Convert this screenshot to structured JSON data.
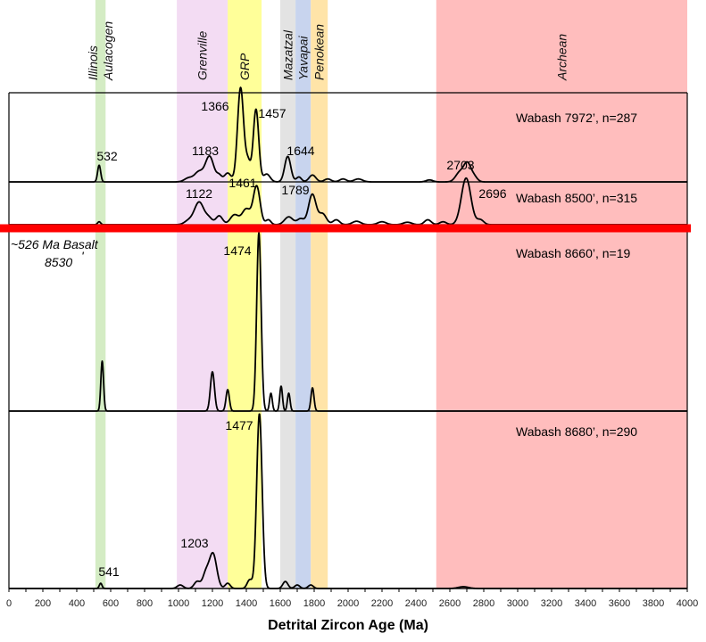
{
  "chart_data": {
    "type": "line",
    "title": "",
    "xlabel": "Detrital Zircon Age (Ma)",
    "ylabel": "",
    "xlim": [
      0,
      4000
    ],
    "x_ticks": [
      0,
      100,
      200,
      300,
      400,
      500,
      600,
      700,
      800,
      900,
      1000,
      1100,
      1200,
      1300,
      1400,
      1500,
      1600,
      1700,
      1800,
      1900,
      2000,
      2100,
      2200,
      2300,
      2400,
      2500,
      2600,
      2700,
      2800,
      2900,
      3000,
      3100,
      3200,
      3300,
      3400,
      3500,
      3600,
      3700,
      3800,
      3900,
      4000
    ],
    "x_tick_labels": [
      "0",
      "200",
      "400",
      "600",
      "800",
      "1000",
      "1200",
      "1400",
      "1600",
      "1800",
      "2000",
      "2200",
      "2400",
      "2600",
      "2800",
      "3000",
      "3200",
      "3400",
      "3600",
      "3800",
      "4000"
    ],
    "x_tick_label_values": [
      0,
      200,
      400,
      600,
      800,
      1000,
      1200,
      1400,
      1600,
      1800,
      2000,
      2200,
      2400,
      2600,
      2800,
      3000,
      3200,
      3400,
      3600,
      3800,
      4000
    ],
    "bands": [
      {
        "name": "illinois-aulacogen",
        "label_lines": [
          "Illinois",
          "Aulacogen"
        ],
        "range": [
          510,
          570
        ],
        "color": "#d4ecc4"
      },
      {
        "name": "grenville",
        "label_lines": [
          "Grenville"
        ],
        "range": [
          990,
          1290
        ],
        "color": "#f3dcf3"
      },
      {
        "name": "grp",
        "label_lines": [
          "GRP"
        ],
        "range": [
          1290,
          1490
        ],
        "color": "#ffff99"
      },
      {
        "name": "mazatzal",
        "label_lines": [
          "Mazatzal"
        ],
        "range": [
          1600,
          1690
        ],
        "color": "#e3e3e3"
      },
      {
        "name": "yavapai",
        "label_lines": [
          "Yavapai"
        ],
        "range": [
          1690,
          1780
        ],
        "color": "#c8d4ee"
      },
      {
        "name": "penokean",
        "label_lines": [
          "Penokean"
        ],
        "range": [
          1780,
          1880
        ],
        "color": "#ffe4a8"
      },
      {
        "name": "archean",
        "label_lines": [
          "Archean"
        ],
        "range": [
          2520,
          4000
        ],
        "color": "#ffbdbd"
      }
    ],
    "basalt_marker": {
      "label": "~526 Ma Basalt",
      "depth_label": "8530",
      "depth_mark": "'",
      "color": "#ff0000"
    },
    "series": [
      {
        "name": "Wabash 7972’, n=287",
        "peak_labels": [
          {
            "text": "532",
            "x": 532
          },
          {
            "text": "1183",
            "x": 1183
          },
          {
            "text": "1366",
            "x": 1366
          },
          {
            "text": "1457",
            "x": 1457
          },
          {
            "text": "1644",
            "x": 1644
          },
          {
            "text": "2703",
            "x": 2703
          }
        ],
        "peaks": [
          {
            "x": 532,
            "height": 0.17,
            "width": 9
          },
          {
            "x": 1060,
            "height": 0.04,
            "width": 25
          },
          {
            "x": 1120,
            "height": 0.1,
            "width": 25
          },
          {
            "x": 1183,
            "height": 0.26,
            "width": 25
          },
          {
            "x": 1240,
            "height": 0.06,
            "width": 15
          },
          {
            "x": 1290,
            "height": 0.09,
            "width": 20
          },
          {
            "x": 1366,
            "height": 0.96,
            "width": 18
          },
          {
            "x": 1410,
            "height": 0.2,
            "width": 15
          },
          {
            "x": 1457,
            "height": 0.74,
            "width": 16
          },
          {
            "x": 1520,
            "height": 0.08,
            "width": 20
          },
          {
            "x": 1644,
            "height": 0.26,
            "width": 18
          },
          {
            "x": 1710,
            "height": 0.05,
            "width": 15
          },
          {
            "x": 1790,
            "height": 0.07,
            "width": 20
          },
          {
            "x": 1880,
            "height": 0.03,
            "width": 20
          },
          {
            "x": 1970,
            "height": 0.03,
            "width": 20
          },
          {
            "x": 2060,
            "height": 0.03,
            "width": 25
          },
          {
            "x": 2480,
            "height": 0.02,
            "width": 20
          },
          {
            "x": 2660,
            "height": 0.1,
            "width": 25
          },
          {
            "x": 2703,
            "height": 0.17,
            "width": 20
          },
          {
            "x": 2740,
            "height": 0.06,
            "width": 20
          }
        ]
      },
      {
        "name": "Wabash 8500’, n=315",
        "peak_labels": [
          {
            "text": "1122",
            "x": 1122
          },
          {
            "text": "1461",
            "x": 1461
          },
          {
            "text": "1789",
            "x": 1789
          },
          {
            "text": "2696",
            "x": 2696
          }
        ],
        "peaks": [
          {
            "x": 532,
            "height": 0.06,
            "width": 9
          },
          {
            "x": 1060,
            "height": 0.08,
            "width": 25
          },
          {
            "x": 1122,
            "height": 0.46,
            "width": 28
          },
          {
            "x": 1180,
            "height": 0.12,
            "width": 20
          },
          {
            "x": 1240,
            "height": 0.18,
            "width": 20
          },
          {
            "x": 1330,
            "height": 0.2,
            "width": 25
          },
          {
            "x": 1400,
            "height": 0.32,
            "width": 25
          },
          {
            "x": 1461,
            "height": 0.78,
            "width": 20
          },
          {
            "x": 1530,
            "height": 0.1,
            "width": 15
          },
          {
            "x": 1650,
            "height": 0.16,
            "width": 25
          },
          {
            "x": 1720,
            "height": 0.12,
            "width": 20
          },
          {
            "x": 1789,
            "height": 0.62,
            "width": 22
          },
          {
            "x": 1850,
            "height": 0.22,
            "width": 22
          },
          {
            "x": 1930,
            "height": 0.1,
            "width": 20
          },
          {
            "x": 2050,
            "height": 0.07,
            "width": 25
          },
          {
            "x": 2200,
            "height": 0.06,
            "width": 25
          },
          {
            "x": 2350,
            "height": 0.05,
            "width": 25
          },
          {
            "x": 2470,
            "height": 0.1,
            "width": 20
          },
          {
            "x": 2560,
            "height": 0.06,
            "width": 20
          },
          {
            "x": 2696,
            "height": 0.95,
            "width": 28
          },
          {
            "x": 2780,
            "height": 0.1,
            "width": 20
          }
        ]
      },
      {
        "name": "Wabash 8660’, n=19",
        "peak_labels": [
          {
            "text": "1474",
            "x": 1474
          }
        ],
        "peaks": [
          {
            "x": 550,
            "height": 0.28,
            "width": 8
          },
          {
            "x": 1200,
            "height": 0.22,
            "width": 12
          },
          {
            "x": 1290,
            "height": 0.12,
            "width": 10
          },
          {
            "x": 1474,
            "height": 1.0,
            "width": 13
          },
          {
            "x": 1545,
            "height": 0.1,
            "width": 8
          },
          {
            "x": 1605,
            "height": 0.14,
            "width": 8
          },
          {
            "x": 1650,
            "height": 0.1,
            "width": 8
          },
          {
            "x": 1790,
            "height": 0.13,
            "width": 9
          }
        ]
      },
      {
        "name": "Wabash 8680’, n=290",
        "peak_labels": [
          {
            "text": "541",
            "x": 541
          },
          {
            "text": "1203",
            "x": 1203
          },
          {
            "text": "1477",
            "x": 1477
          }
        ],
        "peaks": [
          {
            "x": 541,
            "height": 0.03,
            "width": 8
          },
          {
            "x": 1010,
            "height": 0.02,
            "width": 18
          },
          {
            "x": 1110,
            "height": 0.04,
            "width": 18
          },
          {
            "x": 1160,
            "height": 0.08,
            "width": 18
          },
          {
            "x": 1203,
            "height": 0.2,
            "width": 22
          },
          {
            "x": 1290,
            "height": 0.03,
            "width": 15
          },
          {
            "x": 1420,
            "height": 0.05,
            "width": 15
          },
          {
            "x": 1477,
            "height": 1.0,
            "width": 16
          },
          {
            "x": 1630,
            "height": 0.04,
            "width": 15
          },
          {
            "x": 1700,
            "height": 0.02,
            "width": 15
          },
          {
            "x": 1780,
            "height": 0.02,
            "width": 15
          },
          {
            "x": 2680,
            "height": 0.01,
            "width": 30
          }
        ]
      }
    ]
  }
}
